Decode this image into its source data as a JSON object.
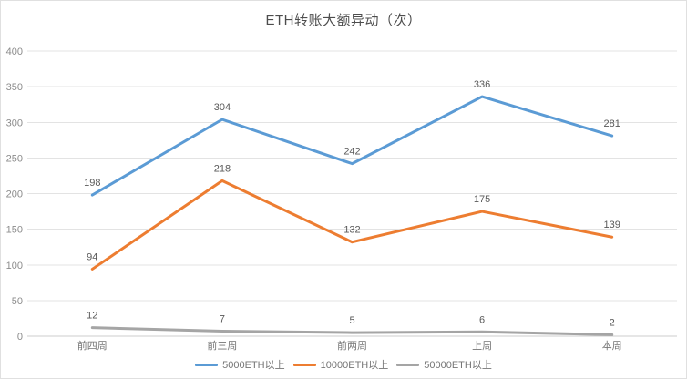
{
  "chart_data": {
    "type": "line",
    "title": "ETH转账大额异动（次）",
    "categories": [
      "前四周",
      "前三周",
      "前两周",
      "上周",
      "本周"
    ],
    "series": [
      {
        "name": "5000ETH以上",
        "color": "#5b9bd5",
        "values": [
          198,
          304,
          242,
          336,
          281
        ]
      },
      {
        "name": "10000ETH以上",
        "color": "#ed7d31",
        "values": [
          94,
          218,
          132,
          175,
          139
        ]
      },
      {
        "name": "50000ETH以上",
        "color": "#a5a5a5",
        "values": [
          12,
          7,
          5,
          6,
          2
        ]
      }
    ],
    "ylim": [
      0,
      400
    ],
    "yticks": [
      0,
      50,
      100,
      150,
      200,
      250,
      300,
      350,
      400
    ],
    "xlabel": "",
    "ylabel": "",
    "grid": "horizontal",
    "legend_position": "bottom",
    "data_labels": true
  },
  "colors": {
    "grid": "#e3e3e3",
    "axis": "#cccccc",
    "background": "#ffffff",
    "border": "#e0e0e0",
    "tick_text": "#8c8c8c",
    "label_text": "#595959"
  }
}
